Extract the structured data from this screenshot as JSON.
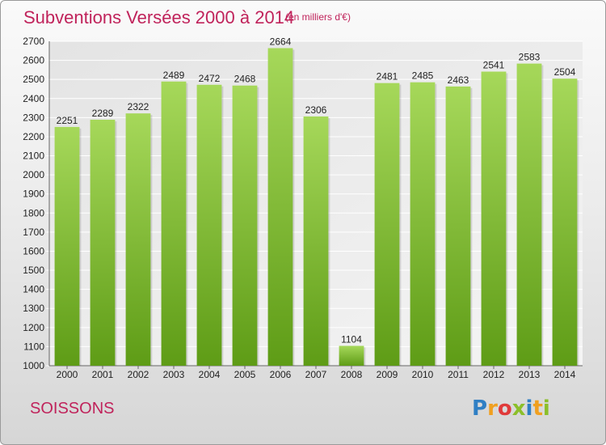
{
  "header": {
    "title": "Subventions Versées 2000 à 2014",
    "subtitle": "(en milliers d'€)"
  },
  "footer": {
    "town": "SOISSONS",
    "logo_letters": [
      {
        "char": "P",
        "color": "#2f7fc4"
      },
      {
        "char": "r",
        "color": "#f0a020"
      },
      {
        "char": "o",
        "color": "#e03a3a"
      },
      {
        "char": "x",
        "color": "#8bbf2a"
      },
      {
        "char": "i",
        "color": "#2f7fc4"
      },
      {
        "char": "t",
        "color": "#f0a020"
      },
      {
        "char": "i",
        "color": "#8bbf2a"
      }
    ]
  },
  "colors": {
    "accent": "#c0235b",
    "bar_light": "#9fd04e",
    "bar_dark": "#5f9e18",
    "grid": "#ffffff"
  },
  "chart_data": {
    "type": "bar",
    "title": "Subventions Versées 2000 à 2014",
    "subtitle": "(en milliers d'€)",
    "xlabel": "",
    "ylabel": "",
    "categories": [
      "2000",
      "2001",
      "2002",
      "2003",
      "2004",
      "2005",
      "2006",
      "2007",
      "2008",
      "2009",
      "2010",
      "2011",
      "2012",
      "2013",
      "2014"
    ],
    "values": [
      2251,
      2289,
      2322,
      2489,
      2472,
      2468,
      2664,
      2306,
      1104,
      2481,
      2485,
      2463,
      2541,
      2583,
      2504
    ],
    "ylim": [
      1000,
      2700
    ],
    "yticks": [
      1000,
      1100,
      1200,
      1300,
      1400,
      1500,
      1600,
      1700,
      1800,
      1900,
      2000,
      2100,
      2200,
      2300,
      2400,
      2500,
      2600,
      2700
    ],
    "grid": true,
    "data_labels": true
  }
}
